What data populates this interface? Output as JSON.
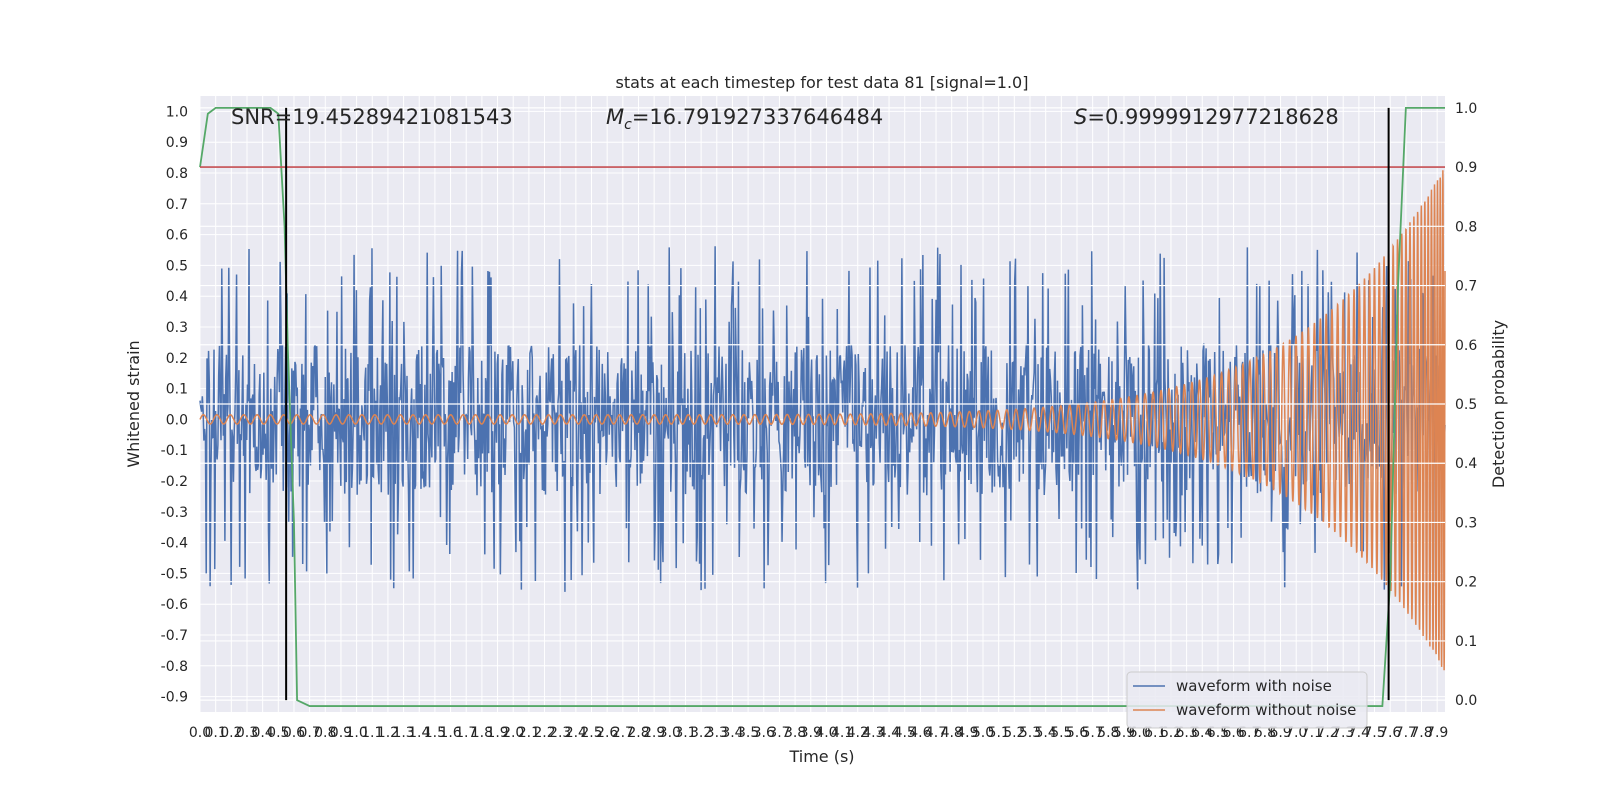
{
  "chart_data": {
    "type": "line",
    "title": "stats at each timestep for test data 81 [signal=1.0]",
    "xlabel": "Time (s)",
    "ylabel": "Whitened strain",
    "y2label": "Detection probability",
    "xlim": [
      0.0,
      7.95
    ],
    "ylim": [
      -0.95,
      1.05
    ],
    "y2lim": [
      -0.02,
      1.02
    ],
    "x_ticks": [
      "0.0",
      "0.1",
      "0.2",
      "0.3",
      "0.4",
      "0.5",
      "0.6",
      "0.7",
      "0.8",
      "0.9",
      "1.0",
      "1.1",
      "1.2",
      "1.3",
      "1.4",
      "1.5",
      "1.6",
      "1.7",
      "1.8",
      "1.9",
      "2.0",
      "2.1",
      "2.2",
      "2.3",
      "2.4",
      "2.5",
      "2.6",
      "2.7",
      "2.8",
      "2.9",
      "3.0",
      "3.1",
      "3.2",
      "3.3",
      "3.4",
      "3.5",
      "3.6",
      "3.7",
      "3.8",
      "3.9",
      "4.0",
      "4.1",
      "4.2",
      "4.3",
      "4.4",
      "4.5",
      "4.6",
      "4.7",
      "4.8",
      "4.9",
      "5.0",
      "5.1",
      "5.2",
      "5.3",
      "5.4",
      "5.5",
      "5.6",
      "5.7",
      "5.8",
      "5.9",
      "6.0",
      "6.1",
      "6.2",
      "6.3",
      "6.4",
      "6.5",
      "6.6",
      "6.7",
      "6.8",
      "6.9",
      "7.0",
      "7.1",
      "7.2",
      "7.3",
      "7.4",
      "7.5",
      "7.6",
      "7.7",
      "7.8",
      "7.9"
    ],
    "y_ticks": [
      "1.0",
      "0.9",
      "0.8",
      "0.7",
      "0.6",
      "0.5",
      "0.4",
      "0.3",
      "0.2",
      "0.1",
      "0.0",
      "-0.1",
      "-0.2",
      "-0.3",
      "-0.4",
      "-0.5",
      "-0.6",
      "-0.7",
      "-0.8",
      "-0.9"
    ],
    "y2_ticks": [
      "1.0",
      "0.9",
      "0.8",
      "0.7",
      "0.6",
      "0.5",
      "0.4",
      "0.3",
      "0.2",
      "0.1",
      "0.0"
    ],
    "annotations": [
      {
        "id": "snr",
        "text": "SNR=19.45289421081543"
      },
      {
        "id": "mc",
        "prefix": "M",
        "sub": "c",
        "text": "=16.791927337646484"
      },
      {
        "id": "s",
        "prefix": "S",
        "text": "=0.9999912977218628"
      }
    ],
    "series": [
      {
        "name": "waveform with noise",
        "color": "#4c72b0",
        "type": "noise",
        "band": [
          -0.45,
          0.45
        ],
        "peak_max": 0.78,
        "trough_min": -0.81
      },
      {
        "name": "waveform without noise",
        "color": "#dd8452",
        "type": "chirp",
        "start_amplitude": 0.015,
        "end_amplitude": 0.9
      },
      {
        "name": "detection probability",
        "color": "#55a868",
        "axis": "right",
        "x": [
          0.0,
          0.05,
          0.1,
          0.45,
          0.5,
          0.54,
          0.56,
          0.6,
          0.62,
          0.7,
          7.55,
          7.6,
          7.65,
          7.7,
          7.95
        ],
        "y": [
          0.9,
          0.99,
          1.0,
          1.0,
          0.99,
          0.8,
          0.6,
          0.3,
          0.0,
          -0.01,
          -0.01,
          0.2,
          0.7,
          1.0,
          1.0
        ]
      },
      {
        "name": "detection threshold",
        "color": "#c44e52",
        "axis": "right",
        "type": "hline",
        "y": 0.9
      }
    ],
    "vertical_markers": [
      {
        "x": 0.55,
        "color": "#000000"
      },
      {
        "x": 7.59,
        "color": "#000000"
      }
    ],
    "legend": {
      "position": "bottom-right",
      "entries": [
        "waveform with noise",
        "waveform without noise"
      ]
    }
  }
}
